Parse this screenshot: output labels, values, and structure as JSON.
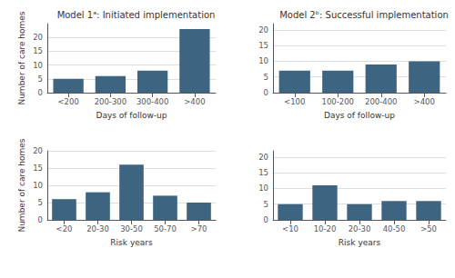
{
  "chart_data": [
    {
      "type": "bar",
      "title": "Model 1ᵃ: Initiated implementation",
      "categories": [
        "<200",
        "200-300",
        "300-400",
        ">400"
      ],
      "values": [
        5,
        6,
        8,
        23
      ],
      "color": "#3d6481",
      "xlabel": "Days of follow-up",
      "ylabel": "Number of care homes",
      "ylim": [
        0,
        25
      ],
      "yticks": [
        0,
        5,
        10,
        15,
        20
      ],
      "grid": true
    },
    {
      "type": "bar",
      "title": "Model 2ᵇ: Successful implementation",
      "categories": [
        "<100",
        "100-200",
        "200-400",
        ">400"
      ],
      "values": [
        7,
        7,
        9,
        10
      ],
      "color": "#3d6481",
      "xlabel": "Days of follow-up",
      "ylim": [
        0,
        22
      ],
      "yticks": [
        0,
        5,
        10,
        15,
        20
      ],
      "grid": true
    },
    {
      "type": "bar",
      "categories": [
        "<20",
        "20-30",
        "30-50",
        "50-70",
        ">70"
      ],
      "values": [
        6,
        8,
        16,
        7,
        5
      ],
      "color": "#3d6481",
      "xlabel": "Risk years",
      "ylabel": "Number of care homes",
      "ylim": [
        0,
        20
      ],
      "yticks": [
        0,
        5,
        10,
        15,
        20
      ],
      "grid": true
    },
    {
      "type": "bar",
      "categories": [
        "<10",
        "10-20",
        "20-30",
        "40-50",
        ">50"
      ],
      "values": [
        5,
        11,
        5,
        6,
        6
      ],
      "color": "#3d6481",
      "xlabel": "Risk years",
      "ylim": [
        0,
        22
      ],
      "yticks": [
        0,
        5,
        10,
        15,
        20
      ],
      "grid": true
    }
  ]
}
